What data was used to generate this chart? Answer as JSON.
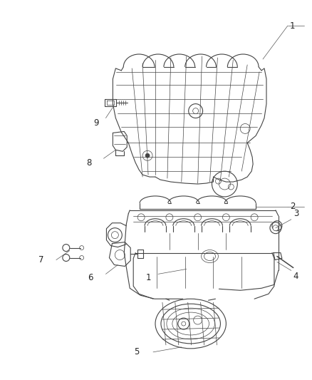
{
  "background_color": "#ffffff",
  "fig_width": 4.38,
  "fig_height": 5.33,
  "line_color": "#444444",
  "label_fontsize": 8.5,
  "thin_lw": 0.5,
  "med_lw": 0.8,
  "thick_lw": 1.1
}
